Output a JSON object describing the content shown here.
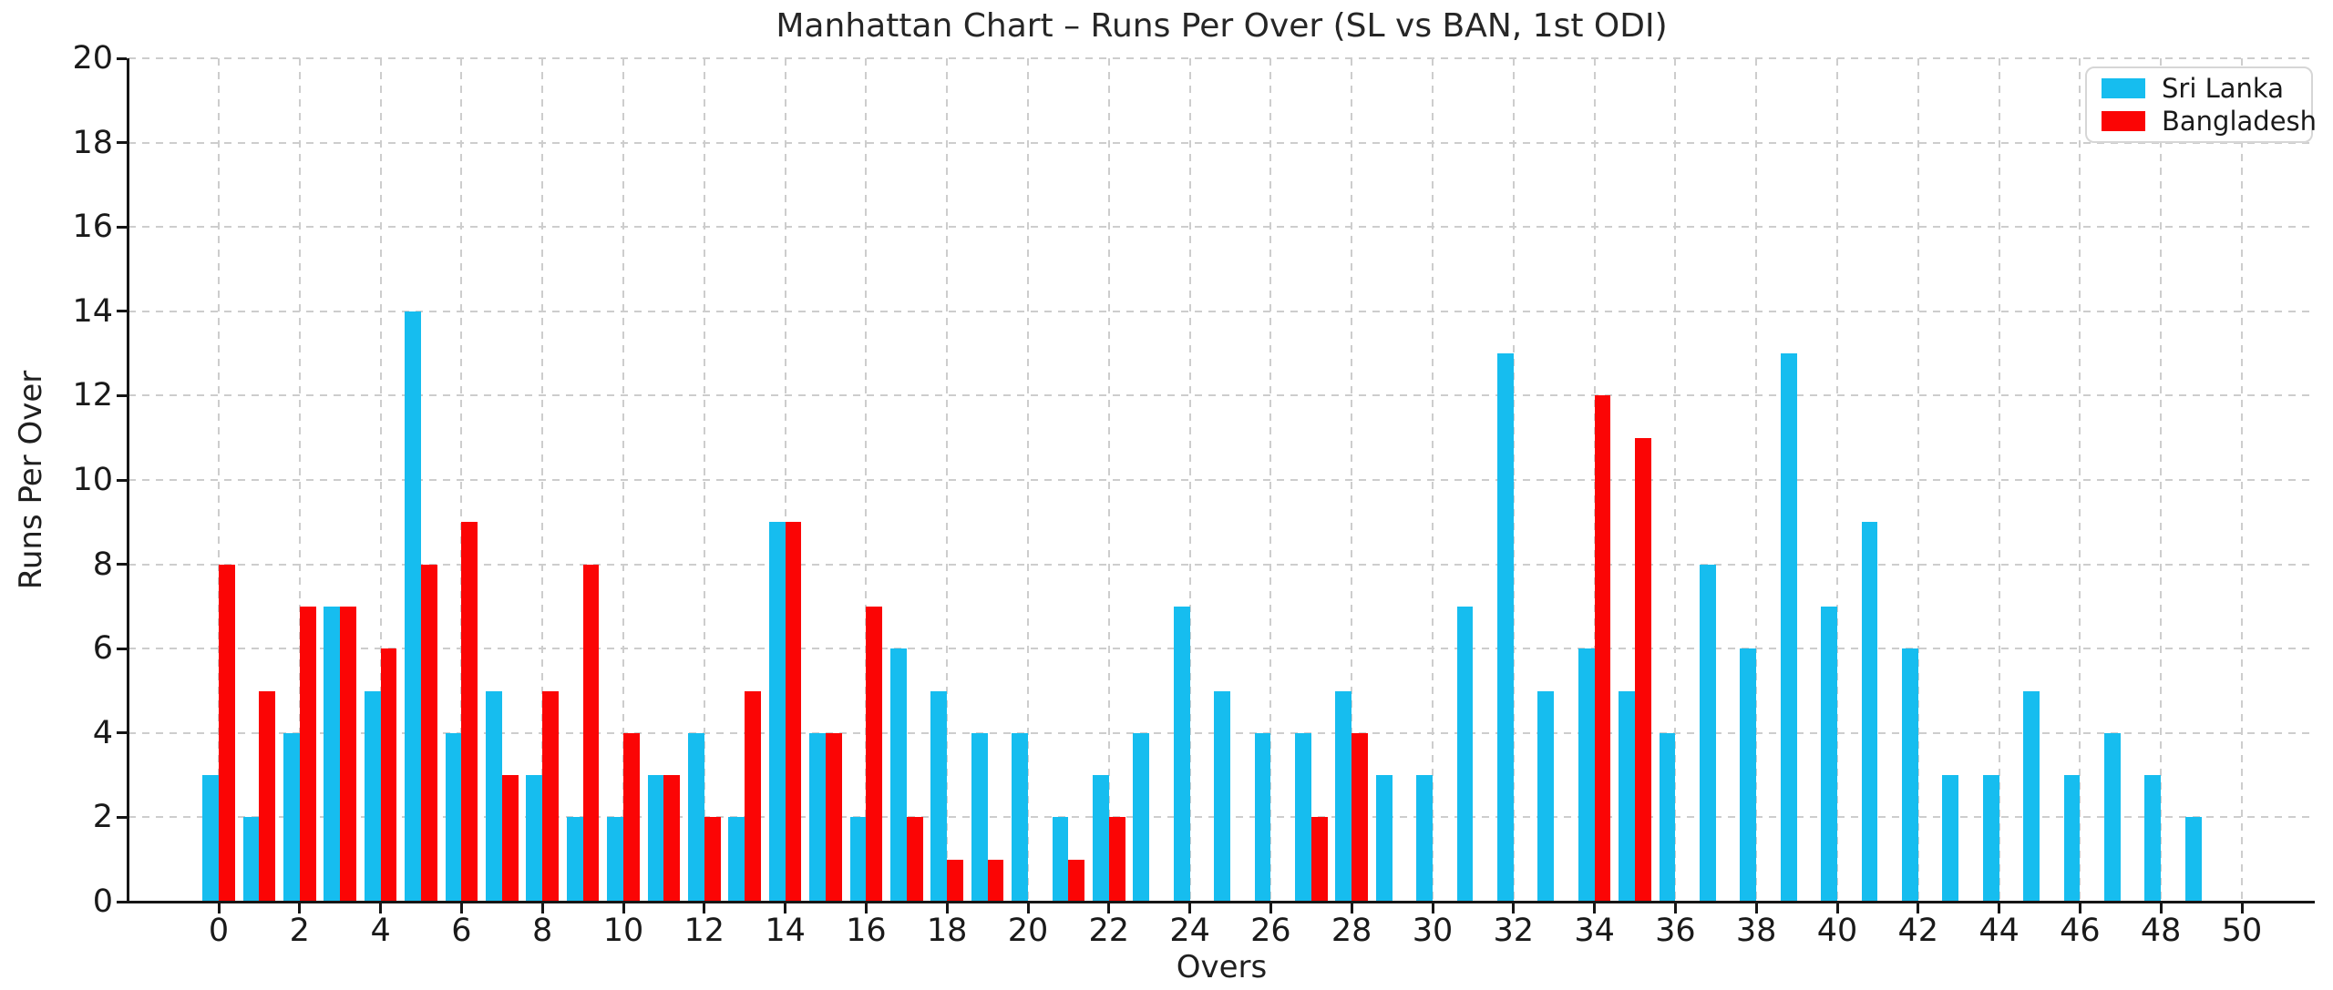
{
  "title": "Manhattan Chart – Runs Per Over (SL vs BAN, 1st ODI)",
  "chart_data": {
    "type": "bar",
    "title": "Manhattan Chart – Runs Per Over (SL vs BAN, 1st ODI)",
    "xlabel": "Overs",
    "ylabel": "Runs Per Over",
    "categories": [
      0,
      1,
      2,
      3,
      4,
      5,
      6,
      7,
      8,
      9,
      10,
      11,
      12,
      13,
      14,
      15,
      16,
      17,
      18,
      19,
      20,
      21,
      22,
      23,
      24,
      25,
      26,
      27,
      28,
      29,
      30,
      31,
      32,
      33,
      34,
      35,
      36,
      37,
      38,
      39,
      40,
      41,
      42,
      43,
      44,
      45,
      46,
      47,
      48,
      49
    ],
    "series": [
      {
        "name": "Sri Lanka",
        "color": "#16BDEF",
        "values": [
          3,
          2,
          4,
          7,
          5,
          14,
          4,
          5,
          3,
          2,
          2,
          3,
          4,
          2,
          9,
          4,
          2,
          6,
          5,
          4,
          4,
          2,
          3,
          4,
          7,
          5,
          4,
          4,
          5,
          3,
          3,
          7,
          13,
          5,
          6,
          5,
          4,
          8,
          6,
          13,
          7,
          9,
          6,
          3,
          3,
          5,
          3,
          4,
          3,
          2
        ]
      },
      {
        "name": "Bangladesh",
        "color": "#FB0505",
        "values": [
          8,
          5,
          7,
          7,
          6,
          8,
          9,
          3,
          5,
          8,
          4,
          3,
          2,
          5,
          9,
          4,
          7,
          2,
          1,
          1,
          0,
          1,
          2,
          0,
          0,
          0,
          0,
          2,
          4,
          0,
          0,
          0,
          0,
          0,
          12,
          11,
          0,
          0,
          0,
          0,
          0,
          0,
          0,
          0,
          0,
          0,
          0,
          0,
          0,
          0
        ]
      }
    ],
    "ylim": [
      0,
      20
    ],
    "yticks": [
      0,
      2,
      4,
      6,
      8,
      10,
      12,
      14,
      16,
      18,
      20
    ],
    "xticks": [
      0,
      2,
      4,
      6,
      8,
      10,
      12,
      14,
      16,
      18,
      20,
      22,
      24,
      26,
      28,
      30,
      32,
      34,
      36,
      38,
      40,
      42,
      44,
      46,
      48,
      50
    ],
    "grid": true,
    "grid_style": "dashed",
    "legend_position": "upper right",
    "bar_layout": "side-by-side, width 0.4 overs per bar"
  },
  "colors": {
    "sri_lanka": "#16BDEF",
    "bangladesh": "#FB0505",
    "gridline": "#cdcdcd",
    "axis": "#161616",
    "background": "#ffffff",
    "text": "#1a1a1a"
  }
}
